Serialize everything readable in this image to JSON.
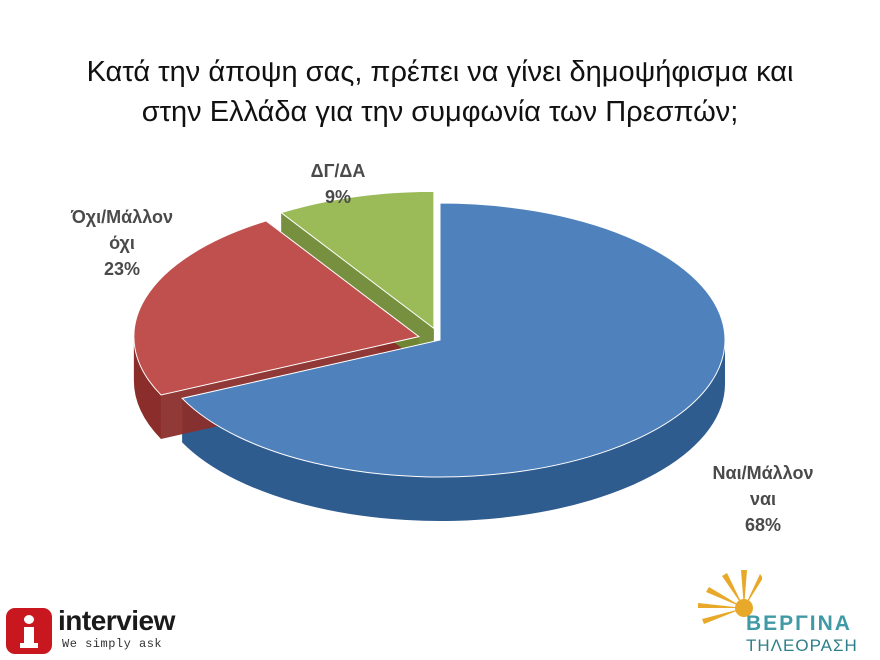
{
  "chart_data": {
    "type": "pie",
    "title_lines": [
      "Κατά την άποψη σας, πρέπει να γίνει δημοψήφισμα και",
      "στην Ελλάδα για την συμφωνία των Πρεσπών;"
    ],
    "slices": [
      {
        "label_lines": [
          "Ναι/Μάλλον",
          "ναι"
        ],
        "value": 68,
        "percent_label": "68%",
        "color": "#4f81bd",
        "side_color": "#2e5c8f",
        "exploded": false
      },
      {
        "label_lines": [
          "Όχι/Μάλλον",
          "όχι"
        ],
        "value": 23,
        "percent_label": "23%",
        "color": "#c0504d",
        "side_color": "#8b2e2b",
        "exploded": true
      },
      {
        "label_lines": [
          "ΔΓ/ΔΑ"
        ],
        "value": 9,
        "percent_label": "9%",
        "color": "#9bbb59",
        "side_color": "#6f8a35",
        "exploded": true
      }
    ]
  },
  "logos": {
    "left": {
      "name": "interview",
      "tagline": "We simply ask",
      "color": "#c8171e"
    },
    "right": {
      "name": "ΒΕΡΓΙΝΑ",
      "subtitle": "ΤΗΛΕΟΡΑΣΗ",
      "color": "#3f9aa6"
    }
  }
}
